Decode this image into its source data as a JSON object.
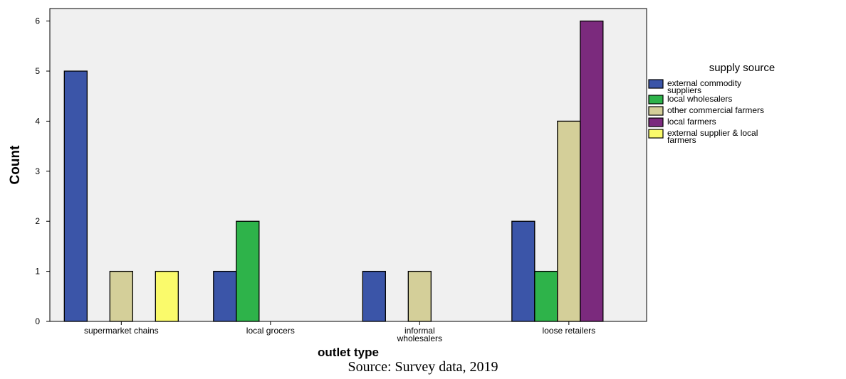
{
  "chart_data": {
    "type": "bar",
    "categories": [
      "supermarket chains",
      "local grocers",
      "informal wholesalers",
      "loose retailers"
    ],
    "series": [
      {
        "name": "external commodity suppliers",
        "color": "#3b55a8",
        "values": [
          5,
          1,
          1,
          2
        ]
      },
      {
        "name": "local wholesalers",
        "color": "#2eb34a",
        "values": [
          0,
          2,
          0,
          1
        ]
      },
      {
        "name": "other commercial farmers",
        "color": "#d4cf99",
        "values": [
          1,
          0,
          1,
          4
        ]
      },
      {
        "name": "local farmers",
        "color": "#7b2a7d",
        "values": [
          0,
          0,
          0,
          6
        ]
      },
      {
        "name": "external supplier & local farmers",
        "color": "#fafa6b",
        "values": [
          1,
          0,
          0,
          0
        ]
      }
    ],
    "xlabel": "outlet type",
    "ylabel": "Count",
    "ylim": [
      0,
      6.25
    ],
    "yticks": [
      0,
      1,
      2,
      3,
      4,
      5,
      6
    ],
    "legend_title": "supply source",
    "legend_position": "right",
    "plot_background": "#f0f0f0",
    "grid": false
  },
  "source_text": "Source: Survey data, 2019"
}
